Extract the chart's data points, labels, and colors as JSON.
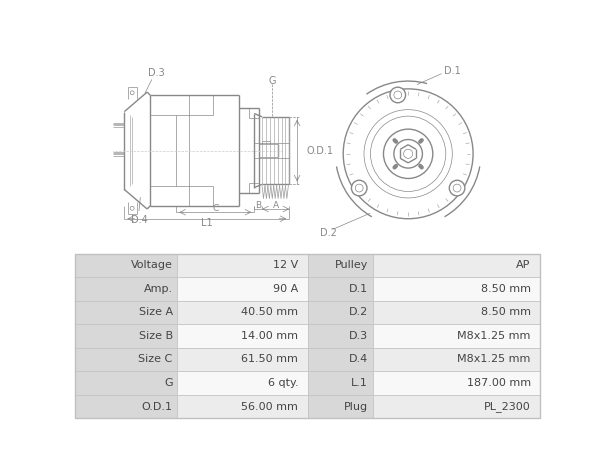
{
  "table_rows": [
    [
      "Voltage",
      "12 V",
      "Pulley",
      "AP"
    ],
    [
      "Amp.",
      "90 A",
      "D.1",
      "8.50 mm"
    ],
    [
      "Size A",
      "40.50 mm",
      "D.2",
      "8.50 mm"
    ],
    [
      "Size B",
      "14.00 mm",
      "D.3",
      "M8x1.25 mm"
    ],
    [
      "Size C",
      "61.50 mm",
      "D.4",
      "M8x1.25 mm"
    ],
    [
      "G",
      "6 qty.",
      "L.1",
      "187.00 mm"
    ],
    [
      "O.D.1",
      "56.00 mm",
      "Plug",
      "PL_2300"
    ]
  ],
  "bg_color": "#ffffff",
  "table_label_bg": "#d8d8d8",
  "table_val_bg_odd": "#ececec",
  "table_val_bg_even": "#f8f8f8",
  "table_border_color": "#c0c0c0",
  "line_color": "#888888",
  "dim_color": "#888888",
  "label_color": "#666666",
  "label_fontsize": 7.0,
  "lw_main": 1.0,
  "lw_thin": 0.5,
  "lw_dim": 0.5
}
